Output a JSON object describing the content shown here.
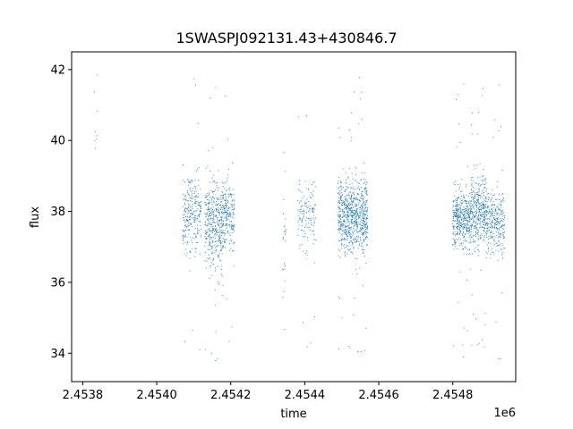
{
  "chart_data": {
    "type": "scatter",
    "title": "1SWASPJ092131.43+430846.7",
    "xlabel": "time",
    "ylabel": "flux",
    "x_offset_label": "1e6",
    "xlim": [
      2.45377,
      2.45497
    ],
    "ylim": [
      33.2,
      42.5
    ],
    "x_ticks": [
      2.4538,
      2.454,
      2.4542,
      2.4544,
      2.4546,
      2.4548
    ],
    "x_tick_labels": [
      "2.4538",
      "2.4540",
      "2.4542",
      "2.4544",
      "2.4546",
      "2.4548"
    ],
    "y_ticks": [
      34,
      36,
      38,
      40,
      42
    ],
    "y_tick_labels": [
      "34",
      "36",
      "38",
      "40",
      "42"
    ],
    "grid": false,
    "legend": "none",
    "marker_color": "#1f77b4",
    "series": [
      {
        "clusters": [
          {
            "x_range": [
              2.45383,
              2.45384
            ],
            "center": 40.5,
            "spread": 0.9,
            "n": 8
          },
          {
            "x_range": [
              2.45407,
              2.45412
            ],
            "center": 37.9,
            "spread": 0.8,
            "n": 260
          },
          {
            "x_range": [
              2.45413,
              2.45418
            ],
            "center": 37.7,
            "spread": 0.9,
            "n": 420
          },
          {
            "x_range": [
              2.45418,
              2.45421
            ],
            "center": 37.9,
            "spread": 0.7,
            "n": 200
          },
          {
            "x_range": [
              2.45434,
              2.45435
            ],
            "center": 37.0,
            "spread": 1.4,
            "n": 25
          },
          {
            "x_range": [
              2.45438,
              2.45443
            ],
            "center": 37.9,
            "spread": 0.8,
            "n": 140
          },
          {
            "x_range": [
              2.45449,
              2.45457
            ],
            "center": 37.9,
            "spread": 0.8,
            "n": 800
          },
          {
            "x_range": [
              2.4548,
              2.45485
            ],
            "center": 37.8,
            "spread": 0.6,
            "n": 450
          },
          {
            "x_range": [
              2.45485,
              2.45489
            ],
            "center": 38.0,
            "spread": 0.8,
            "n": 350
          },
          {
            "x_range": [
              2.45489,
              2.45494
            ],
            "center": 37.7,
            "spread": 0.7,
            "n": 300
          }
        ]
      }
    ]
  }
}
